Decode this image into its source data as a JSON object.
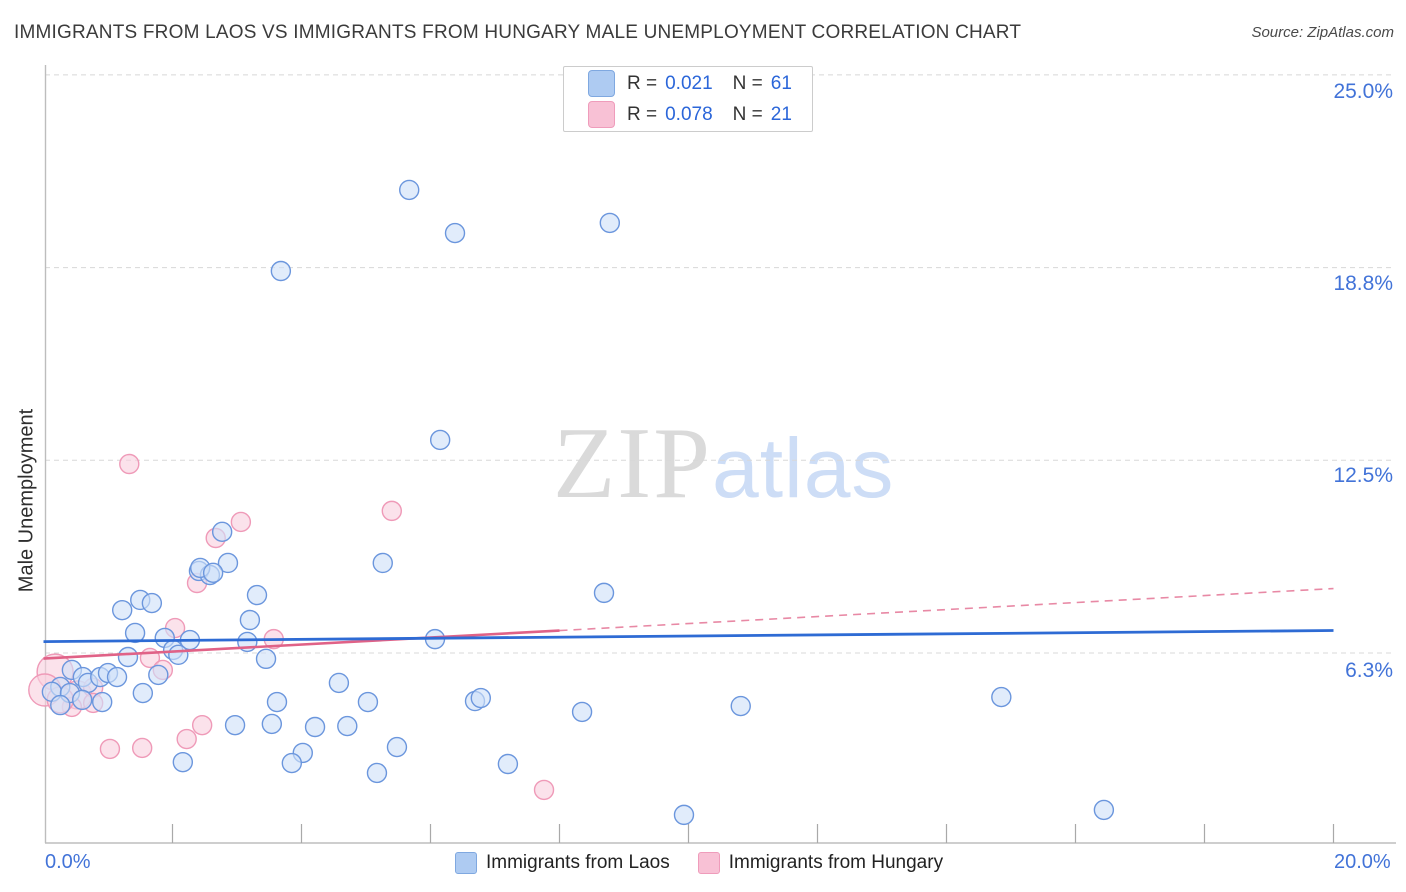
{
  "header": {
    "title": "IMMIGRANTS FROM LAOS VS IMMIGRANTS FROM HUNGARY MALE UNEMPLOYMENT CORRELATION CHART",
    "source": "Source: ZipAtlas.com"
  },
  "legend_box": {
    "rows": [
      {
        "r_label": "R =",
        "r_value": "0.021",
        "n_label": "N =",
        "n_value": "61"
      },
      {
        "r_label": "R =",
        "r_value": "0.078",
        "n_label": "N =",
        "n_value": "21"
      }
    ]
  },
  "watermark": {
    "zip": "ZIP",
    "atlas": "atlas"
  },
  "y_axis": {
    "title": "Male Unemployment",
    "ticks": [
      "25.0%",
      "18.8%",
      "12.5%",
      "6.3%"
    ]
  },
  "x_axis": {
    "min_label": "0.0%",
    "max_label": "20.0%"
  },
  "bottom_legend": {
    "laos": "Immigrants from Laos",
    "hungary": "Immigrants from Hungary"
  },
  "colors": {
    "blue_fill": "#cfe0f8",
    "blue_stroke": "#6b96dd",
    "pink_fill": "#f9d0de",
    "pink_stroke": "#ef9ab8",
    "blue_trend": "#2e6bd4",
    "pink_trend": "#e06287",
    "grid": "#d8d8d8",
    "axis": "#bdbdbd",
    "tick": "#a9a9a9"
  },
  "chart_data": {
    "type": "scatter",
    "title": "Immigrants from Laos vs Immigrants from Hungary Male Unemployment",
    "xlabel": "",
    "ylabel": "Male Unemployment",
    "xlim": [
      0,
      20
    ],
    "ylim": [
      0,
      25.4
    ],
    "grid": true,
    "legend_position": "top-center",
    "x_tick_values": [
      2,
      4,
      6,
      8,
      10,
      12,
      14,
      16,
      18,
      20
    ],
    "gridlines_y": [
      25.0,
      18.75,
      12.5,
      6.25
    ],
    "gridline_labels": [
      "25.0%",
      "18.8%",
      "12.5%",
      "6.3%"
    ],
    "series": [
      {
        "name": "Immigrants from Laos",
        "R": "0.021",
        "N": 61,
        "points": [
          [
            5.67,
            21.27
          ],
          [
            6.38,
            19.87
          ],
          [
            8.78,
            20.2
          ],
          [
            3.68,
            18.64
          ],
          [
            6.15,
            13.16
          ],
          [
            2.77,
            10.18
          ],
          [
            2.41,
            8.91
          ],
          [
            2.58,
            8.78
          ],
          [
            2.86,
            9.17
          ],
          [
            5.26,
            9.17
          ],
          [
            8.69,
            8.2
          ],
          [
            3.45,
            6.06
          ],
          [
            6.07,
            6.7
          ],
          [
            4.58,
            5.28
          ],
          [
            3.62,
            4.66
          ],
          [
            5.03,
            4.66
          ],
          [
            6.69,
            4.69
          ],
          [
            6.78,
            4.79
          ],
          [
            8.35,
            4.34
          ],
          [
            3.54,
            3.95
          ],
          [
            4.21,
            3.85
          ],
          [
            4.71,
            3.88
          ],
          [
            5.48,
            3.2
          ],
          [
            4.02,
            3.01
          ],
          [
            3.85,
            2.68
          ],
          [
            5.17,
            2.36
          ],
          [
            7.2,
            2.65
          ],
          [
            9.93,
            1.0
          ],
          [
            14.85,
            4.82
          ],
          [
            16.44,
            1.16
          ],
          [
            10.81,
            4.53
          ],
          [
            2.97,
            3.91
          ],
          [
            2.16,
            2.71
          ],
          [
            2.43,
            9.01
          ],
          [
            2.63,
            8.85
          ],
          [
            3.31,
            8.13
          ],
          [
            1.22,
            7.64
          ],
          [
            1.5,
            7.97
          ],
          [
            1.68,
            7.87
          ],
          [
            3.16,
            6.61
          ],
          [
            3.2,
            7.32
          ],
          [
            1.42,
            6.9
          ],
          [
            1.88,
            6.74
          ],
          [
            2.01,
            6.35
          ],
          [
            2.27,
            6.67
          ],
          [
            2.09,
            6.19
          ],
          [
            1.31,
            6.12
          ],
          [
            1.78,
            5.54
          ],
          [
            0.44,
            5.7
          ],
          [
            0.61,
            5.47
          ],
          [
            0.69,
            5.28
          ],
          [
            0.26,
            5.15
          ],
          [
            0.13,
            4.99
          ],
          [
            0.41,
            4.95
          ],
          [
            0.88,
            5.47
          ],
          [
            1.0,
            5.6
          ],
          [
            1.14,
            5.47
          ],
          [
            0.6,
            4.73
          ],
          [
            0.26,
            4.56
          ],
          [
            0.91,
            4.66
          ],
          [
            1.54,
            4.95
          ]
        ],
        "trend": {
          "x1": 0,
          "y1": 6.62,
          "x2": 20,
          "y2": 6.98,
          "solid_until_x": 20
        }
      },
      {
        "name": "Immigrants from Hungary",
        "R": "0.078",
        "N": 21,
        "points": [
          [
            1.33,
            12.38
          ],
          [
            5.4,
            10.86
          ],
          [
            3.06,
            10.5
          ],
          [
            2.67,
            9.98
          ],
          [
            2.38,
            8.52
          ],
          [
            2.04,
            7.06
          ],
          [
            1.65,
            6.09
          ],
          [
            1.85,
            5.7
          ],
          [
            0.18,
            5.63,
            18
          ],
          [
            0.53,
            4.89,
            14
          ],
          [
            0.77,
            5.12
          ],
          [
            0.77,
            4.63
          ],
          [
            0.44,
            4.5
          ],
          [
            3.57,
            6.7
          ],
          [
            2.46,
            3.91
          ],
          [
            2.22,
            3.46
          ],
          [
            1.03,
            3.14
          ],
          [
            1.53,
            3.17
          ],
          [
            7.76,
            1.81
          ],
          [
            0.02,
            5.05,
            16
          ],
          [
            0.26,
            4.73,
            13
          ]
        ],
        "trend": {
          "x1": 0,
          "y1": 6.07,
          "x2": 20,
          "y2": 8.34,
          "solid_until_x": 8.0
        }
      }
    ]
  }
}
